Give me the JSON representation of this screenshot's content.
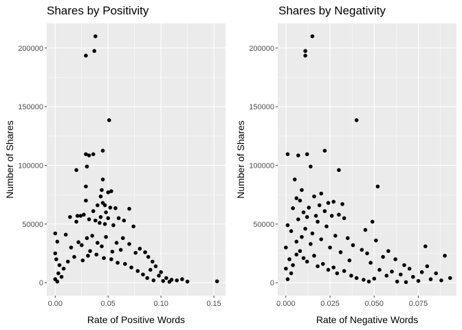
{
  "chart_data": [
    {
      "type": "scatter",
      "title": "Shares by Positivity",
      "xlabel": "Rate of Positive Words",
      "ylabel": "Number of Shares",
      "xlim": [
        -0.008,
        0.161
      ],
      "ylim": [
        -11000,
        221000
      ],
      "x_ticks": [
        0.0,
        0.05,
        0.1,
        0.15
      ],
      "x_tick_labels": [
        "0.00",
        "0.05",
        "0.10",
        "0.15"
      ],
      "y_ticks": [
        0,
        50000,
        100000,
        150000,
        200000
      ],
      "y_tick_labels": [
        "0",
        "50000",
        "100000",
        "150000",
        "200000"
      ],
      "grid": true,
      "legend": "none",
      "points": [
        [
          0.038,
          210000
        ],
        [
          0.037,
          197500
        ],
        [
          0.029,
          193500
        ],
        [
          0.051,
          138500
        ],
        [
          0.045,
          112500
        ],
        [
          0.029,
          109500
        ],
        [
          0.036,
          109500
        ],
        [
          0.032,
          108500
        ],
        [
          0.03,
          99000
        ],
        [
          0.02,
          96000
        ],
        [
          0.045,
          88000
        ],
        [
          0.029,
          82000
        ],
        [
          0.044,
          79000
        ],
        [
          0.053,
          78000
        ],
        [
          0.05,
          77000
        ],
        [
          0.043,
          73500
        ],
        [
          0.029,
          70000
        ],
        [
          0.045,
          68000
        ],
        [
          0.04,
          66000
        ],
        [
          0.047,
          66000
        ],
        [
          0.052,
          64000
        ],
        [
          0.057,
          63500
        ],
        [
          0.07,
          63000
        ],
        [
          0.036,
          61000
        ],
        [
          0.048,
          60000
        ],
        [
          0.027,
          58000
        ],
        [
          0.021,
          57000
        ],
        [
          0.024,
          57000
        ],
        [
          0.043,
          56000
        ],
        [
          0.014,
          56000
        ],
        [
          0.05,
          55000
        ],
        [
          0.06,
          55000
        ],
        [
          0.032,
          54000
        ],
        [
          0.038,
          53000
        ],
        [
          0.065,
          53000
        ],
        [
          0.02,
          52000
        ],
        [
          0.042,
          51000
        ],
        [
          0.047,
          50000
        ],
        [
          0.055,
          49000
        ],
        [
          0.074,
          48000
        ],
        [
          0.0,
          42000
        ],
        [
          0.01,
          41000
        ],
        [
          0.035,
          40000
        ],
        [
          0.048,
          39000
        ],
        [
          0.03,
          38000
        ],
        [
          0.064,
          38000
        ],
        [
          0.002,
          35000
        ],
        [
          0.022,
          34500
        ],
        [
          0.04,
          34000
        ],
        [
          0.058,
          34000
        ],
        [
          0.07,
          33000
        ],
        [
          0.025,
          32000
        ],
        [
          0.044,
          31000
        ],
        [
          0.08,
          29000
        ],
        [
          0.062,
          28000
        ],
        [
          0.015,
          30000
        ],
        [
          0.085,
          26000
        ],
        [
          0.033,
          27000
        ],
        [
          0.054,
          26500
        ],
        [
          0.076,
          25500
        ],
        [
          0.088,
          22000
        ],
        [
          0.092,
          18000
        ],
        [
          0.095,
          14000
        ],
        [
          0.1,
          9000
        ],
        [
          0.105,
          4000
        ],
        [
          0.11,
          2500
        ],
        [
          0.115,
          2000
        ],
        [
          0.12,
          3000
        ],
        [
          0.125,
          1000
        ],
        [
          0.153,
          1200
        ],
        [
          0.098,
          6000
        ],
        [
          0.09,
          11000
        ],
        [
          0.003,
          8000
        ],
        [
          0.004,
          15000
        ],
        [
          0.006,
          5000
        ],
        [
          0.008,
          12000
        ],
        [
          0.001,
          20000
        ],
        [
          0.0,
          25000
        ],
        [
          0.0,
          3000
        ],
        [
          0.002,
          1000
        ],
        [
          0.012,
          18000
        ],
        [
          0.018,
          22000
        ],
        [
          0.026,
          19000
        ],
        [
          0.031,
          23000
        ],
        [
          0.039,
          24000
        ],
        [
          0.046,
          21000
        ],
        [
          0.053,
          20000
        ],
        [
          0.059,
          17000
        ],
        [
          0.066,
          16000
        ],
        [
          0.072,
          13000
        ],
        [
          0.078,
          10000
        ],
        [
          0.083,
          7000
        ],
        [
          0.087,
          4000
        ],
        [
          0.093,
          2000
        ],
        [
          0.102,
          1500
        ],
        [
          0.108,
          800
        ]
      ]
    },
    {
      "type": "scatter",
      "title": "Shares by Negativity",
      "xlabel": "Rate of Negative Words",
      "ylabel": "Number of Shares",
      "xlim": [
        -0.0046,
        0.0966
      ],
      "ylim": [
        -11000,
        221000
      ],
      "x_ticks": [
        0.0,
        0.025,
        0.05,
        0.075
      ],
      "x_tick_labels": [
        "0.000",
        "0.025",
        "0.050",
        "0.075"
      ],
      "y_ticks": [
        0,
        50000,
        100000,
        150000,
        200000
      ],
      "y_tick_labels": [
        "0",
        "50000",
        "100000",
        "150000",
        "200000"
      ],
      "grid": true,
      "legend": "none",
      "points": [
        [
          0.015,
          210000
        ],
        [
          0.011,
          197500
        ],
        [
          0.011,
          193500
        ],
        [
          0.04,
          138500
        ],
        [
          0.022,
          112500
        ],
        [
          0.001,
          109500
        ],
        [
          0.012,
          109500
        ],
        [
          0.007,
          108500
        ],
        [
          0.014,
          99000
        ],
        [
          0.03,
          96000
        ],
        [
          0.005,
          88000
        ],
        [
          0.052,
          82000
        ],
        [
          0.009,
          79000
        ],
        [
          0.02,
          76000
        ],
        [
          0.016,
          73500
        ],
        [
          0.006,
          72000
        ],
        [
          0.008,
          70000
        ],
        [
          0.027,
          69000
        ],
        [
          0.024,
          68000
        ],
        [
          0.032,
          67000
        ],
        [
          0.019,
          66000
        ],
        [
          0.013,
          64000
        ],
        [
          0.004,
          63500
        ],
        [
          0.022,
          61000
        ],
        [
          0.01,
          60000
        ],
        [
          0.03,
          58000
        ],
        [
          0.017,
          57000
        ],
        [
          0.026,
          57000
        ],
        [
          0.012,
          56000
        ],
        [
          0.033,
          55000
        ],
        [
          0.007,
          54000
        ],
        [
          0.018,
          52000
        ],
        [
          0.049,
          52000
        ],
        [
          0.001,
          49000
        ],
        [
          0.023,
          48000
        ],
        [
          0.011,
          46000
        ],
        [
          0.045,
          45000
        ],
        [
          0.003,
          44000
        ],
        [
          0.015,
          42000
        ],
        [
          0.028,
          40000
        ],
        [
          0.009,
          39000
        ],
        [
          0.035,
          38000
        ],
        [
          0.02,
          37000
        ],
        [
          0.051,
          36000
        ],
        [
          0.006,
          35000
        ],
        [
          0.014,
          33000
        ],
        [
          0.038,
          32000
        ],
        [
          0.079,
          31000
        ],
        [
          0.025,
          30000
        ],
        [
          0.043,
          28000
        ],
        [
          0.058,
          27000
        ],
        [
          0.031,
          26000
        ],
        [
          0.046,
          25000
        ],
        [
          0.09,
          23000
        ],
        [
          0.055,
          22000
        ],
        [
          0.062,
          20000
        ],
        [
          0.036,
          19000
        ],
        [
          0.048,
          17000
        ],
        [
          0.067,
          15000
        ],
        [
          0.08,
          14000
        ],
        [
          0.07,
          12000
        ],
        [
          0.077,
          9000
        ],
        [
          0.085,
          8000
        ],
        [
          0.093,
          4000
        ],
        [
          0.088,
          2000
        ],
        [
          0.082,
          3000
        ],
        [
          0.075,
          1500
        ],
        [
          0.072,
          5000
        ],
        [
          0.065,
          7000
        ],
        [
          0.06,
          9500
        ],
        [
          0.057,
          6000
        ],
        [
          0.053,
          11000
        ],
        [
          0.0,
          30000
        ],
        [
          0.0,
          12000
        ],
        [
          0.001,
          3000
        ],
        [
          0.002,
          20000
        ],
        [
          0.003,
          8000
        ],
        [
          0.004,
          15000
        ],
        [
          0.006,
          24000
        ],
        [
          0.008,
          27000
        ],
        [
          0.01,
          21000
        ],
        [
          0.012,
          18000
        ],
        [
          0.016,
          23000
        ],
        [
          0.018,
          14000
        ],
        [
          0.021,
          16000
        ],
        [
          0.024,
          11000
        ],
        [
          0.027,
          13000
        ],
        [
          0.029,
          8000
        ],
        [
          0.033,
          10000
        ],
        [
          0.037,
          6000
        ],
        [
          0.04,
          4000
        ],
        [
          0.044,
          2500
        ],
        [
          0.047,
          1000
        ],
        [
          0.05,
          3500
        ],
        [
          0.063,
          1000
        ],
        [
          0.068,
          500
        ]
      ]
    }
  ]
}
